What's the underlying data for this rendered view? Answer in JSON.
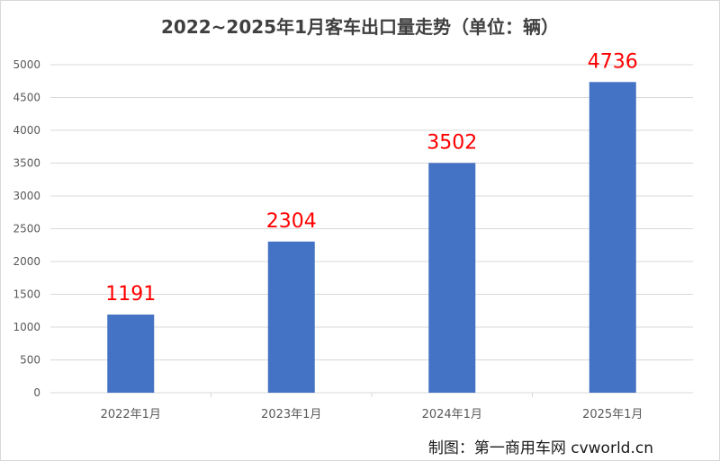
{
  "chart_data": {
    "type": "bar",
    "title": "2022~2025年1月客车出口量走势（单位：辆）",
    "categories": [
      "2022年1月",
      "2023年1月",
      "2024年1月",
      "2025年1月"
    ],
    "values": [
      1191,
      2304,
      3502,
      4736
    ],
    "data_labels": [
      "1191",
      "2304",
      "3502",
      "4736"
    ],
    "ylim": [
      0,
      5000
    ],
    "y_ticks": [
      0,
      500,
      1000,
      1500,
      2000,
      2500,
      3000,
      3500,
      4000,
      4500,
      5000
    ],
    "grid": true,
    "legend": "none",
    "bar_color": "#4472c4",
    "label_color": "#ff0000",
    "grid_color": "#d9d9d9",
    "credit": "制图：第一商用车网 cvworld.cn"
  }
}
